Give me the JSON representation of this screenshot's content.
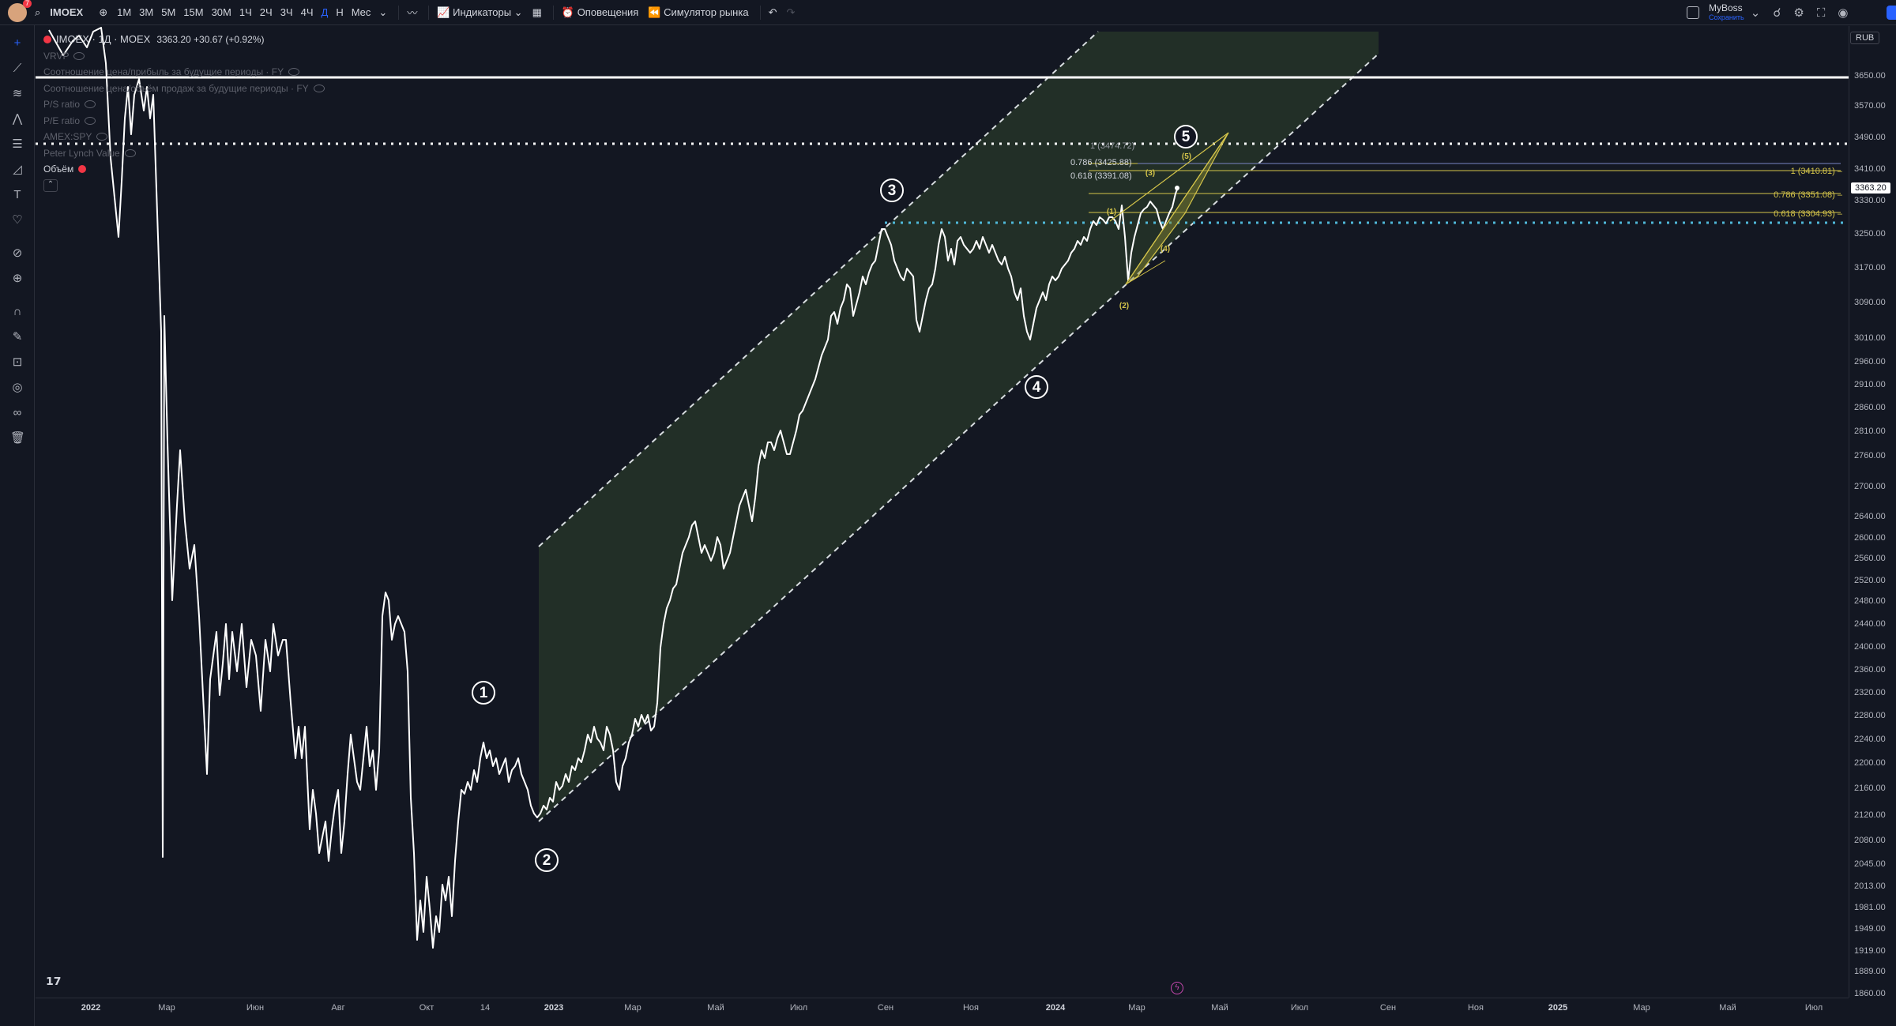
{
  "toolbar": {
    "avatar_badge": "7",
    "symbol": "IMOEX",
    "intervals": [
      "1M",
      "3M",
      "5M",
      "15M",
      "30M",
      "1Ч",
      "2Ч",
      "3Ч",
      "4Ч",
      "Д",
      "Н",
      "Мес"
    ],
    "active_interval": "Д",
    "indicators_label": "Индикаторы",
    "alerts_label": "Оповещения",
    "replay_label": "Симулятор рынка",
    "layout_name": "MyBoss",
    "layout_status": "Сохранить"
  },
  "legend": {
    "title": "IMOEX · 1Д · MOEX",
    "values": "3363.20  +30.67 (+0.92%)",
    "indicators": [
      "VRVP",
      "Соотношение цена/прибыль за будущие периоды · FY",
      "Соотношение цена/объём продаж за будущие периоды · FY",
      "P/S ratio",
      "P/E ratio",
      "AMEX:SPY",
      "Peter Lynch Value",
      "Объём"
    ]
  },
  "currency": "RUB",
  "price_axis": {
    "ticks": [
      "3650.00",
      "3570.00",
      "3490.00",
      "3410.00",
      "3330.00",
      "3250.00",
      "3170.00",
      "3090.00",
      "3010.00",
      "2960.00",
      "2910.00",
      "2860.00",
      "2810.00",
      "2760.00",
      "2700.00",
      "2640.00",
      "2600.00",
      "2560.00",
      "2520.00",
      "2480.00",
      "2440.00",
      "2400.00",
      "2360.00",
      "2320.00",
      "2280.00",
      "2240.00",
      "2200.00",
      "2160.00",
      "2120.00",
      "2080.00",
      "2045.00",
      "2013.00",
      "1981.00",
      "1949.00",
      "1919.00",
      "1889.00",
      "1860.00"
    ],
    "last_price": "3363.20"
  },
  "time_axis": {
    "labels": [
      {
        "t": "2022",
        "bold": true
      },
      {
        "t": "Мар"
      },
      {
        "t": "Июн"
      },
      {
        "t": "Авг"
      },
      {
        "t": "Окт"
      },
      {
        "t": "14"
      },
      {
        "t": "2023",
        "bold": true
      },
      {
        "t": "Мар"
      },
      {
        "t": "Май"
      },
      {
        "t": "Июл"
      },
      {
        "t": "Сен"
      },
      {
        "t": "Ноя"
      },
      {
        "t": "2024",
        "bold": true
      },
      {
        "t": "Мар"
      },
      {
        "t": "Май"
      },
      {
        "t": "Июл"
      },
      {
        "t": "Сен"
      },
      {
        "t": "Ноя"
      },
      {
        "t": "2025",
        "bold": true
      },
      {
        "t": "Мар"
      },
      {
        "t": "Май"
      },
      {
        "t": "Июл"
      }
    ]
  },
  "waves": [
    "1",
    "2",
    "3",
    "4",
    "5"
  ],
  "subwaves": [
    "(1)",
    "(2)",
    "(3)",
    "(4)",
    "(5)"
  ],
  "fib_labels": {
    "left": [
      "1 (3474.72)",
      "0.786 (3425.88)",
      "0.618 (3391.08)"
    ],
    "right": [
      "1 (3410.81)",
      "0.786 (3351.08)",
      "0.618 (3304.93)"
    ]
  },
  "colors": {
    "background": "#131722",
    "channel_fill": "#233028",
    "price_line": "#ffffff",
    "fib": "#d4c44a",
    "dotted_level": "#4fb8d9"
  }
}
